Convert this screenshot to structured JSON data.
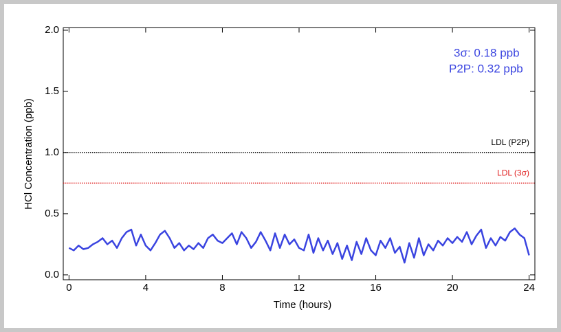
{
  "chart_data": {
    "type": "line",
    "xlabel": "Time (hours)",
    "ylabel": "HCl Concentration (ppb)",
    "annotations": [
      "3σ: 0.18 ppb",
      "P2P: 0.32 ppb"
    ],
    "reference_lines": [
      {
        "label": "LDL (P2P)",
        "value": 1.0,
        "color": "#000000"
      },
      {
        "label": "LDL (3σ)",
        "value": 0.75,
        "color": "#e02020"
      }
    ],
    "xlim": [
      -0.3,
      24.3
    ],
    "ylim": [
      -0.04,
      2.02
    ],
    "xticks": [
      0,
      4,
      8,
      12,
      16,
      20,
      24
    ],
    "yticks": [
      {
        "value": 0,
        "label": "0.0"
      },
      0.5,
      {
        "value": 1,
        "label": "1.0"
      },
      1.5,
      {
        "value": 2,
        "label": "2.0"
      }
    ],
    "x": [
      0,
      0.25,
      0.5,
      0.75,
      1,
      1.25,
      1.5,
      1.75,
      2,
      2.25,
      2.5,
      2.75,
      3,
      3.25,
      3.5,
      3.75,
      4,
      4.25,
      4.5,
      4.75,
      5,
      5.25,
      5.5,
      5.75,
      6,
      6.25,
      6.5,
      6.75,
      7,
      7.25,
      7.5,
      7.75,
      8,
      8.25,
      8.5,
      8.75,
      9,
      9.25,
      9.5,
      9.75,
      10,
      10.25,
      10.5,
      10.75,
      11,
      11.25,
      11.5,
      11.75,
      12,
      12.25,
      12.5,
      12.75,
      13,
      13.25,
      13.5,
      13.75,
      14,
      14.25,
      14.5,
      14.75,
      15,
      15.25,
      15.5,
      15.75,
      16,
      16.25,
      16.5,
      16.75,
      17,
      17.25,
      17.5,
      17.75,
      18,
      18.25,
      18.5,
      18.75,
      19,
      19.25,
      19.5,
      19.75,
      20,
      20.25,
      20.5,
      20.75,
      21,
      21.25,
      21.5,
      21.75,
      22,
      22.25,
      22.5,
      22.75,
      23,
      23.25,
      23.5,
      23.75,
      24
    ],
    "series": [
      {
        "color": "#3a44e0",
        "values": [
          0.22,
          0.2,
          0.24,
          0.21,
          0.22,
          0.25,
          0.27,
          0.3,
          0.25,
          0.28,
          0.22,
          0.3,
          0.35,
          0.37,
          0.24,
          0.33,
          0.24,
          0.2,
          0.26,
          0.33,
          0.36,
          0.3,
          0.22,
          0.26,
          0.2,
          0.24,
          0.21,
          0.26,
          0.22,
          0.3,
          0.33,
          0.28,
          0.26,
          0.3,
          0.34,
          0.25,
          0.35,
          0.3,
          0.22,
          0.27,
          0.35,
          0.28,
          0.2,
          0.34,
          0.22,
          0.33,
          0.25,
          0.29,
          0.22,
          0.2,
          0.33,
          0.18,
          0.3,
          0.2,
          0.28,
          0.17,
          0.26,
          0.13,
          0.24,
          0.12,
          0.27,
          0.17,
          0.3,
          0.2,
          0.16,
          0.28,
          0.22,
          0.3,
          0.18,
          0.23,
          0.1,
          0.26,
          0.14,
          0.3,
          0.16,
          0.25,
          0.2,
          0.28,
          0.24,
          0.3,
          0.26,
          0.31,
          0.27,
          0.35,
          0.25,
          0.32,
          0.37,
          0.22,
          0.3,
          0.24,
          0.31,
          0.28,
          0.35,
          0.38,
          0.33,
          0.3,
          0.16
        ]
      }
    ]
  }
}
